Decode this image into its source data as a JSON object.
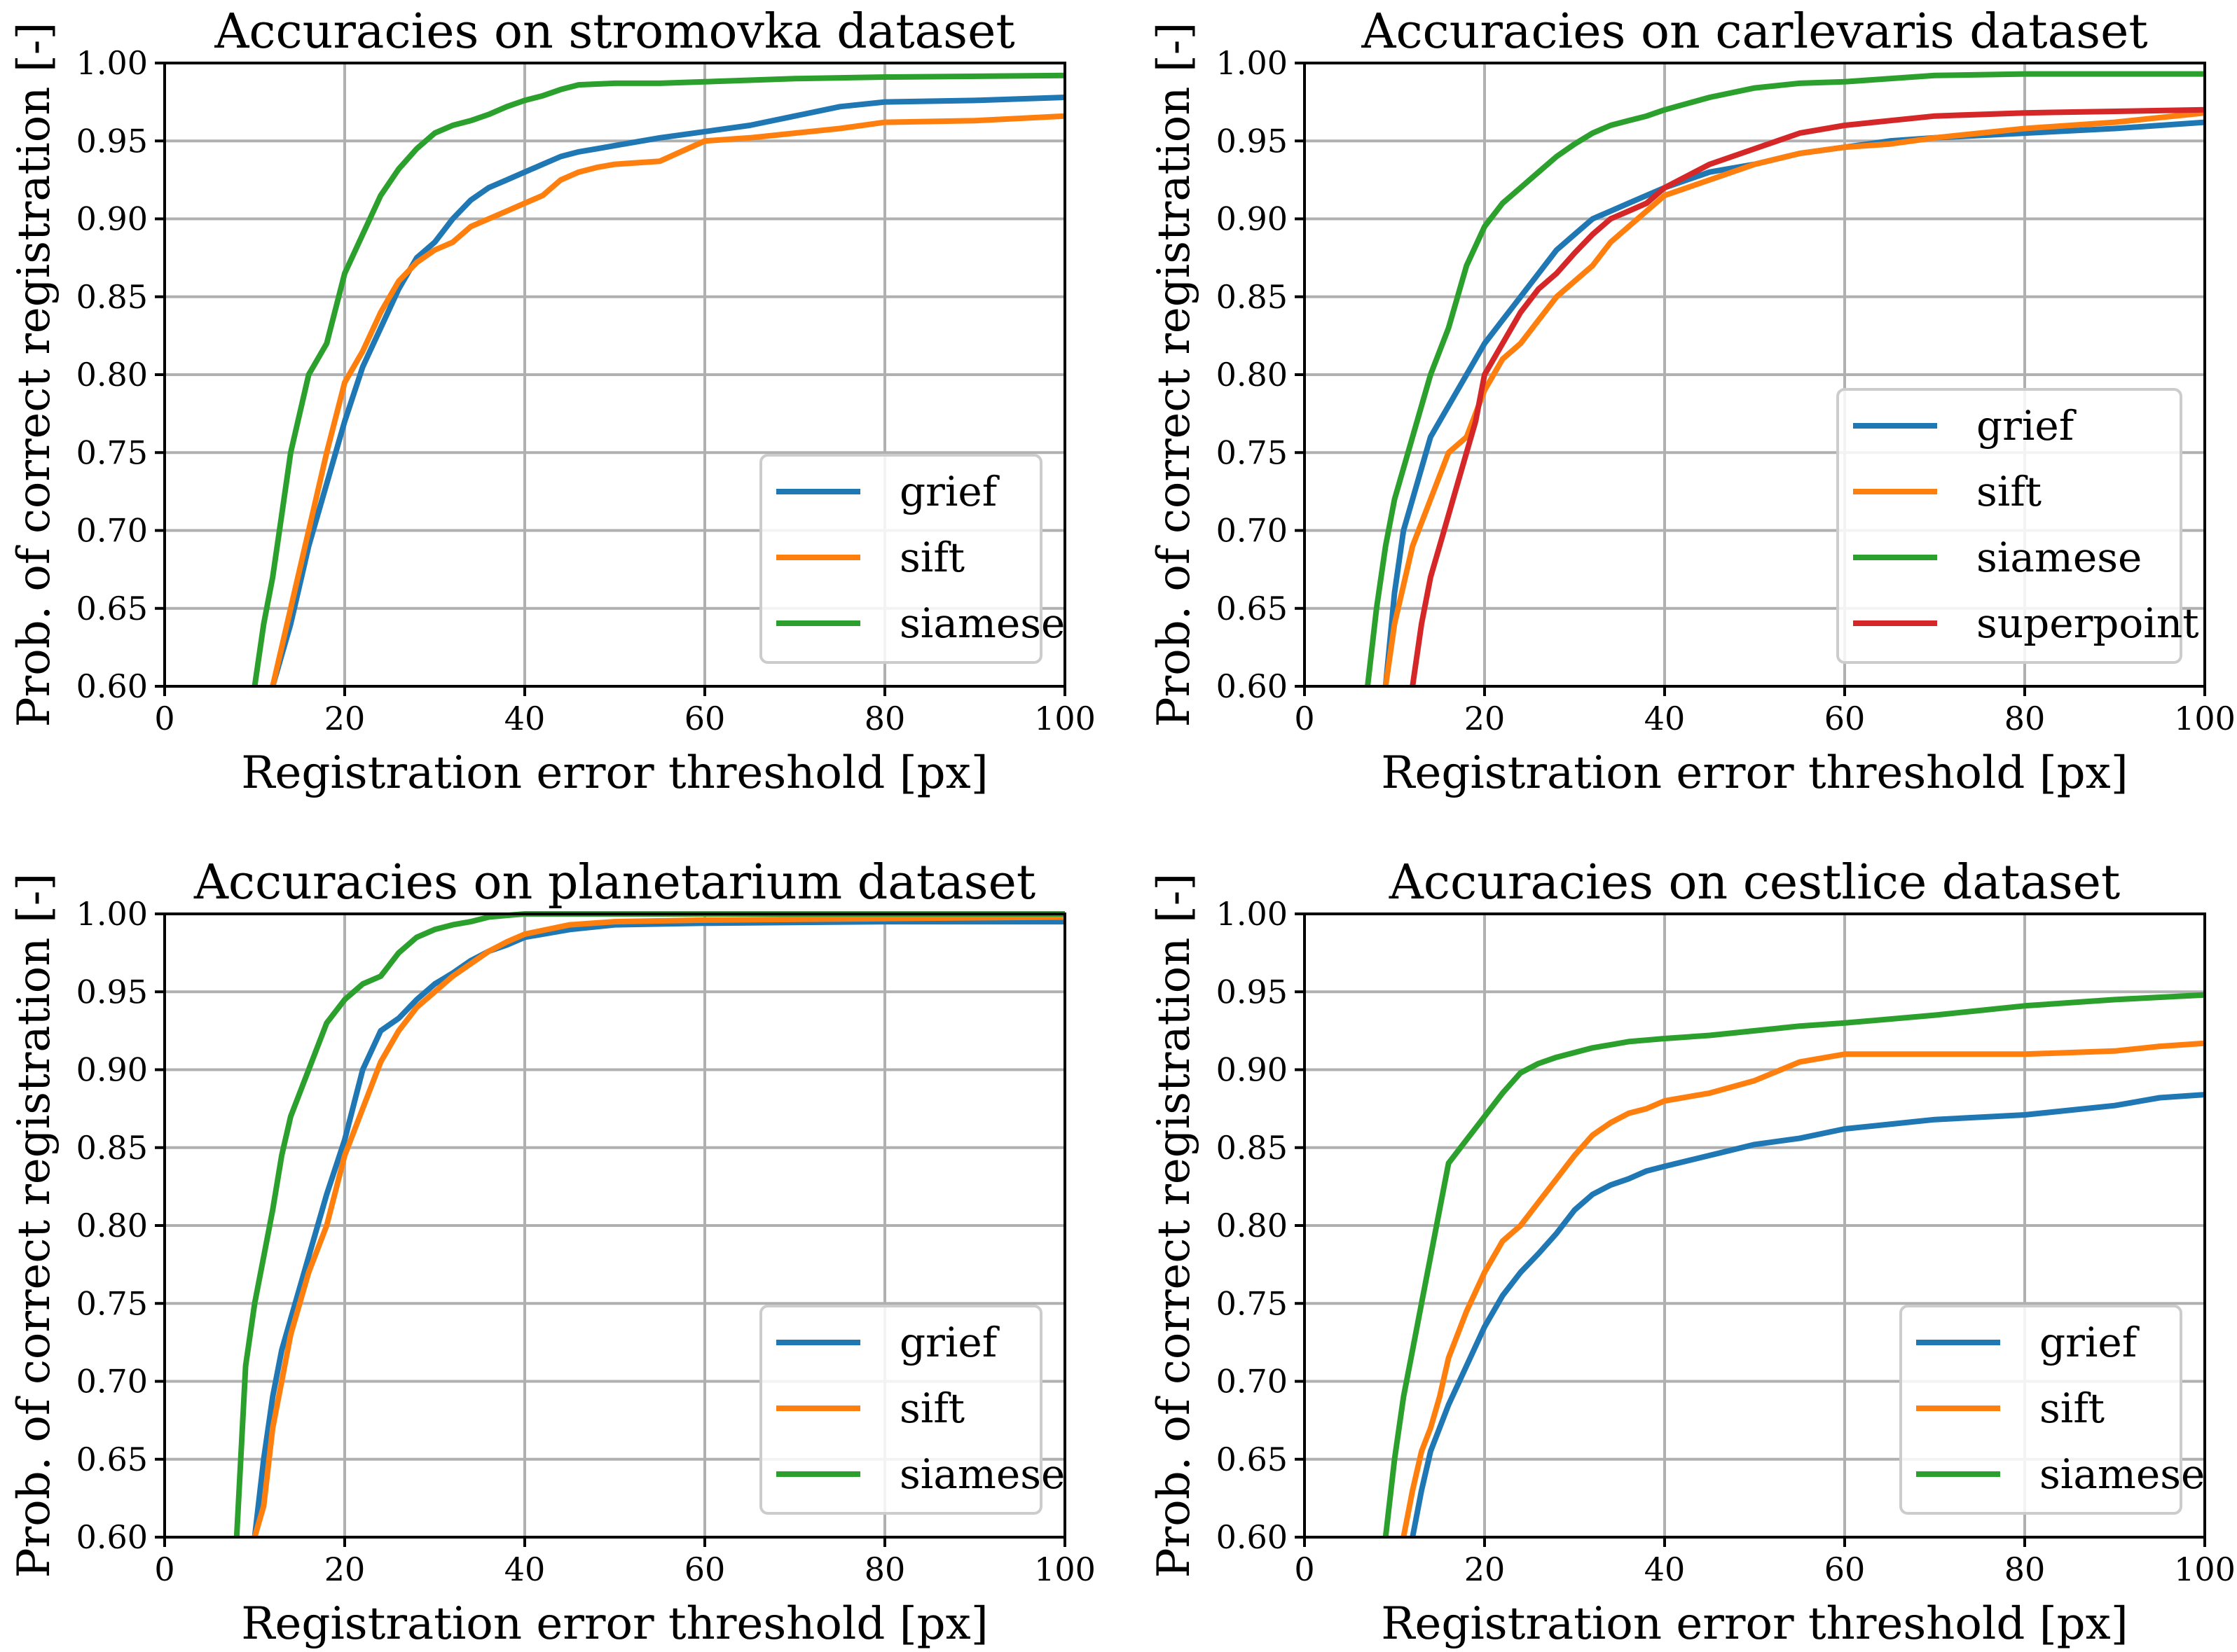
{
  "chart_data": [
    {
      "type": "line",
      "title": "Accuracies on stromovka dataset",
      "xlabel": "Registration error threshold [px]",
      "ylabel": "Prob. of correct registration [-]",
      "xlim": [
        0,
        100
      ],
      "ylim": [
        0.6,
        1.0
      ],
      "xticks": [
        0,
        20,
        40,
        60,
        80,
        100
      ],
      "yticks": [
        "0.60",
        "0.65",
        "0.70",
        "0.75",
        "0.80",
        "0.85",
        "0.90",
        "0.95",
        "1.00"
      ],
      "grid": true,
      "legend": "lower-right",
      "series": [
        {
          "name": "grief",
          "color": "#1f77b4",
          "x": [
            12,
            14,
            16,
            18,
            20,
            22,
            24,
            26,
            28,
            30,
            32,
            34,
            36,
            38,
            40,
            42,
            44,
            46,
            48,
            50,
            55,
            60,
            65,
            70,
            75,
            80,
            90,
            100
          ],
          "y": [
            0.6,
            0.64,
            0.69,
            0.73,
            0.77,
            0.805,
            0.83,
            0.855,
            0.875,
            0.885,
            0.9,
            0.912,
            0.92,
            0.925,
            0.93,
            0.935,
            0.94,
            0.943,
            0.945,
            0.947,
            0.952,
            0.956,
            0.96,
            0.966,
            0.972,
            0.975,
            0.976,
            0.978
          ]
        },
        {
          "name": "sift",
          "color": "#ff7f0e",
          "x": [
            12,
            14,
            16,
            18,
            20,
            22,
            24,
            26,
            28,
            30,
            32,
            34,
            36,
            38,
            40,
            42,
            44,
            46,
            48,
            50,
            55,
            60,
            65,
            70,
            75,
            80,
            90,
            100
          ],
          "y": [
            0.6,
            0.65,
            0.7,
            0.75,
            0.795,
            0.815,
            0.84,
            0.86,
            0.872,
            0.88,
            0.885,
            0.895,
            0.9,
            0.905,
            0.91,
            0.915,
            0.925,
            0.93,
            0.933,
            0.935,
            0.937,
            0.95,
            0.952,
            0.955,
            0.958,
            0.962,
            0.963,
            0.966
          ]
        },
        {
          "name": "siamese",
          "color": "#2ca02c",
          "x": [
            10,
            11,
            12,
            13,
            14,
            16,
            18,
            20,
            22,
            24,
            26,
            28,
            30,
            32,
            34,
            36,
            38,
            40,
            42,
            44,
            46,
            50,
            55,
            60,
            65,
            70,
            80,
            100
          ],
          "y": [
            0.6,
            0.64,
            0.67,
            0.71,
            0.75,
            0.8,
            0.82,
            0.865,
            0.89,
            0.915,
            0.932,
            0.945,
            0.955,
            0.96,
            0.963,
            0.967,
            0.972,
            0.976,
            0.979,
            0.983,
            0.986,
            0.987,
            0.987,
            0.988,
            0.989,
            0.99,
            0.991,
            0.992
          ]
        }
      ]
    },
    {
      "type": "line",
      "title": "Accuracies on carlevaris dataset",
      "xlabel": "Registration error threshold [px]",
      "ylabel": "Prob. of correct registration [-]",
      "xlim": [
        0,
        100
      ],
      "ylim": [
        0.6,
        1.0
      ],
      "xticks": [
        0,
        20,
        40,
        60,
        80,
        100
      ],
      "yticks": [
        "0.60",
        "0.65",
        "0.70",
        "0.75",
        "0.80",
        "0.85",
        "0.90",
        "0.95",
        "1.00"
      ],
      "grid": true,
      "legend": "lower-right",
      "series": [
        {
          "name": "grief",
          "color": "#1f77b4",
          "x": [
            9,
            10,
            11,
            12,
            14,
            16,
            18,
            20,
            22,
            24,
            26,
            28,
            30,
            32,
            34,
            36,
            38,
            40,
            45,
            50,
            55,
            60,
            65,
            70,
            80,
            90,
            100
          ],
          "y": [
            0.6,
            0.66,
            0.7,
            0.72,
            0.76,
            0.78,
            0.8,
            0.82,
            0.835,
            0.85,
            0.865,
            0.88,
            0.89,
            0.9,
            0.905,
            0.91,
            0.915,
            0.92,
            0.93,
            0.935,
            0.942,
            0.946,
            0.95,
            0.952,
            0.955,
            0.958,
            0.962
          ]
        },
        {
          "name": "sift",
          "color": "#ff7f0e",
          "x": [
            9,
            10,
            12,
            14,
            16,
            18,
            20,
            22,
            24,
            26,
            28,
            30,
            32,
            34,
            36,
            38,
            40,
            45,
            50,
            55,
            60,
            65,
            70,
            80,
            90,
            100
          ],
          "y": [
            0.6,
            0.64,
            0.69,
            0.72,
            0.75,
            0.76,
            0.79,
            0.81,
            0.82,
            0.835,
            0.85,
            0.86,
            0.87,
            0.885,
            0.895,
            0.905,
            0.915,
            0.925,
            0.935,
            0.942,
            0.946,
            0.948,
            0.952,
            0.958,
            0.962,
            0.968
          ]
        },
        {
          "name": "siamese",
          "color": "#2ca02c",
          "x": [
            7,
            8,
            9,
            10,
            12,
            14,
            16,
            18,
            20,
            22,
            24,
            26,
            28,
            30,
            32,
            34,
            36,
            38,
            40,
            45,
            50,
            55,
            60,
            65,
            70,
            80,
            100
          ],
          "y": [
            0.6,
            0.65,
            0.69,
            0.72,
            0.76,
            0.8,
            0.83,
            0.87,
            0.895,
            0.91,
            0.92,
            0.93,
            0.94,
            0.948,
            0.955,
            0.96,
            0.963,
            0.966,
            0.97,
            0.978,
            0.984,
            0.987,
            0.988,
            0.99,
            0.992,
            0.993,
            0.993
          ]
        },
        {
          "name": "superpoint",
          "color": "#d62728",
          "x": [
            12,
            13,
            14,
            15,
            16,
            17,
            18,
            19,
            20,
            22,
            24,
            26,
            28,
            30,
            32,
            34,
            36,
            38,
            40,
            45,
            50,
            55,
            60,
            65,
            70,
            80,
            100
          ],
          "y": [
            0.6,
            0.64,
            0.67,
            0.69,
            0.71,
            0.73,
            0.75,
            0.77,
            0.8,
            0.82,
            0.84,
            0.855,
            0.865,
            0.878,
            0.89,
            0.9,
            0.905,
            0.91,
            0.92,
            0.935,
            0.945,
            0.955,
            0.96,
            0.963,
            0.966,
            0.968,
            0.97
          ]
        }
      ]
    },
    {
      "type": "line",
      "title": "Accuracies on planetarium dataset",
      "xlabel": "Registration error threshold [px]",
      "ylabel": "Prob. of correct registration [-]",
      "xlim": [
        0,
        100
      ],
      "ylim": [
        0.6,
        1.0
      ],
      "xticks": [
        0,
        20,
        40,
        60,
        80,
        100
      ],
      "yticks": [
        "0.60",
        "0.65",
        "0.70",
        "0.75",
        "0.80",
        "0.85",
        "0.90",
        "0.95",
        "1.00"
      ],
      "grid": true,
      "legend": "lower-right",
      "series": [
        {
          "name": "grief",
          "color": "#1f77b4",
          "x": [
            10,
            11,
            12,
            13,
            14,
            16,
            18,
            20,
            22,
            24,
            26,
            28,
            30,
            32,
            34,
            36,
            38,
            40,
            45,
            50,
            60,
            80,
            100
          ],
          "y": [
            0.6,
            0.65,
            0.69,
            0.72,
            0.74,
            0.78,
            0.82,
            0.855,
            0.9,
            0.925,
            0.933,
            0.945,
            0.955,
            0.962,
            0.97,
            0.976,
            0.98,
            0.985,
            0.99,
            0.993,
            0.994,
            0.995,
            0.995
          ]
        },
        {
          "name": "sift",
          "color": "#ff7f0e",
          "x": [
            10,
            11,
            12,
            13,
            14,
            16,
            18,
            20,
            22,
            24,
            26,
            28,
            30,
            32,
            34,
            36,
            38,
            40,
            45,
            50,
            60,
            80,
            100
          ],
          "y": [
            0.6,
            0.62,
            0.67,
            0.7,
            0.73,
            0.77,
            0.8,
            0.845,
            0.875,
            0.905,
            0.925,
            0.94,
            0.95,
            0.96,
            0.968,
            0.976,
            0.982,
            0.987,
            0.993,
            0.995,
            0.996,
            0.997,
            0.998
          ]
        },
        {
          "name": "siamese",
          "color": "#2ca02c",
          "x": [
            8,
            9,
            10,
            11,
            12,
            13,
            14,
            16,
            18,
            20,
            22,
            24,
            26,
            28,
            30,
            32,
            34,
            36,
            38,
            40,
            50,
            100
          ],
          "y": [
            0.6,
            0.71,
            0.75,
            0.78,
            0.81,
            0.845,
            0.87,
            0.9,
            0.93,
            0.945,
            0.955,
            0.96,
            0.975,
            0.985,
            0.99,
            0.993,
            0.995,
            0.998,
            0.999,
            1.0,
            1.0,
            1.0
          ]
        }
      ]
    },
    {
      "type": "line",
      "title": "Accuracies on cestlice dataset",
      "xlabel": "Registration error threshold [px]",
      "ylabel": "Prob. of correct registration [-]",
      "xlim": [
        0,
        100
      ],
      "ylim": [
        0.6,
        1.0
      ],
      "xticks": [
        0,
        20,
        40,
        60,
        80,
        100
      ],
      "yticks": [
        "0.60",
        "0.65",
        "0.70",
        "0.75",
        "0.80",
        "0.85",
        "0.90",
        "0.95",
        "1.00"
      ],
      "grid": true,
      "legend": "lower-right",
      "series": [
        {
          "name": "grief",
          "color": "#1f77b4",
          "x": [
            12,
            13,
            14,
            15,
            16,
            18,
            20,
            22,
            24,
            26,
            28,
            30,
            32,
            34,
            36,
            38,
            40,
            45,
            50,
            55,
            60,
            65,
            70,
            80,
            90,
            95,
            100
          ],
          "y": [
            0.6,
            0.63,
            0.655,
            0.67,
            0.685,
            0.71,
            0.735,
            0.755,
            0.77,
            0.782,
            0.795,
            0.81,
            0.82,
            0.826,
            0.83,
            0.835,
            0.838,
            0.845,
            0.852,
            0.856,
            0.862,
            0.865,
            0.868,
            0.871,
            0.877,
            0.882,
            0.884
          ]
        },
        {
          "name": "sift",
          "color": "#ff7f0e",
          "x": [
            11,
            12,
            13,
            14,
            15,
            16,
            18,
            20,
            22,
            24,
            26,
            28,
            30,
            32,
            34,
            36,
            38,
            40,
            45,
            50,
            55,
            60,
            70,
            80,
            90,
            95,
            100
          ],
          "y": [
            0.6,
            0.63,
            0.655,
            0.67,
            0.69,
            0.715,
            0.745,
            0.77,
            0.79,
            0.8,
            0.815,
            0.83,
            0.845,
            0.858,
            0.866,
            0.872,
            0.875,
            0.88,
            0.885,
            0.893,
            0.905,
            0.91,
            0.91,
            0.91,
            0.912,
            0.915,
            0.917
          ]
        },
        {
          "name": "siamese",
          "color": "#2ca02c",
          "x": [
            9,
            10,
            11,
            12,
            13,
            14,
            16,
            18,
            20,
            22,
            24,
            26,
            28,
            30,
            32,
            34,
            36,
            38,
            40,
            45,
            50,
            55,
            60,
            70,
            80,
            90,
            100
          ],
          "y": [
            0.6,
            0.65,
            0.69,
            0.72,
            0.75,
            0.78,
            0.84,
            0.855,
            0.87,
            0.885,
            0.898,
            0.904,
            0.908,
            0.911,
            0.914,
            0.916,
            0.918,
            0.919,
            0.92,
            0.922,
            0.925,
            0.928,
            0.93,
            0.935,
            0.941,
            0.945,
            0.948
          ]
        }
      ]
    }
  ]
}
